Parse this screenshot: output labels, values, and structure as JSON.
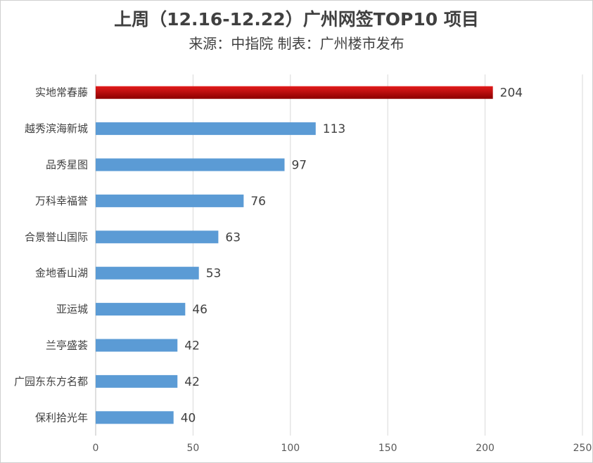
{
  "chart_data": {
    "type": "bar",
    "orientation": "horizontal",
    "title": "上周（12.16-12.22）广州网签TOP10 项目",
    "subtitle": "来源：中指院 制表：广州楼市发布",
    "categories": [
      "实地常春藤",
      "越秀滨海新城",
      "品秀星图",
      "万科幸福誉",
      "合景誉山国际",
      "金地香山湖",
      "亚运城",
      "兰亭盛荟",
      "广园东东方名都",
      "保利拾光年"
    ],
    "values": [
      204,
      113,
      97,
      76,
      63,
      53,
      46,
      42,
      42,
      40
    ],
    "xlim": [
      0,
      250
    ],
    "xticks": [
      0,
      50,
      100,
      150,
      200,
      250
    ],
    "grid": true,
    "legend": "none",
    "colors": {
      "highlight": "#c00000",
      "bar": "#5b9bd5",
      "grid": "#d9d9d9"
    },
    "highlight_index": 0
  }
}
